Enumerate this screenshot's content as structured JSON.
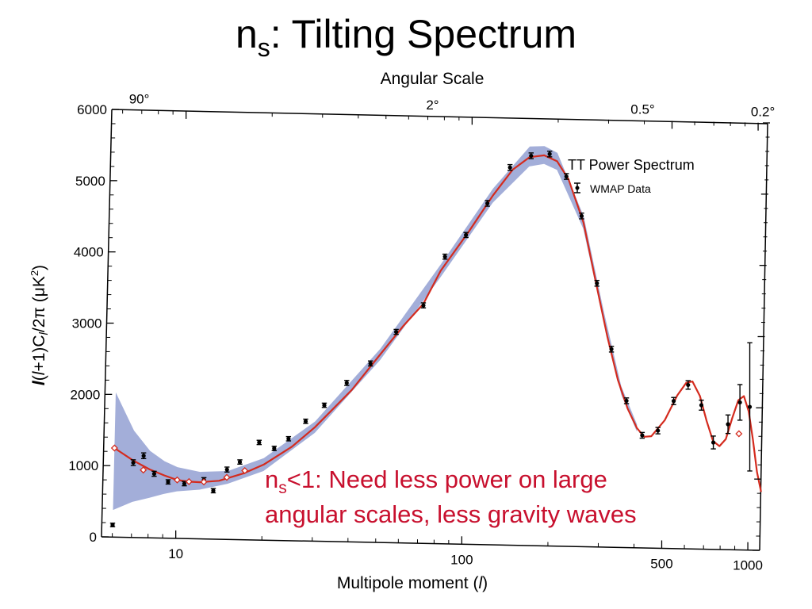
{
  "slide": {
    "title_main": "n",
    "title_sub": "s",
    "title_rest": ": Tilting Spectrum"
  },
  "annotation": {
    "main": "n",
    "sub": "s",
    "line1_rest": "<1: Need less power on large",
    "line2": "angular scales, less gravity waves"
  },
  "chart_data": {
    "type": "scatter",
    "title": "",
    "xlabel": "Multipole moment (l)",
    "ylabel": "l(l+1)C_l/2π (μK²)",
    "ylabel_parts": {
      "l1": "l",
      "mid": "(",
      "l2": "l",
      "mid2": "+1)C",
      "l3": "l",
      "tail": "/2π (μK",
      "sup": "2",
      "close": ")"
    },
    "xlabel_parts": {
      "text": "Multipole moment (",
      "l": "l",
      "close": ")"
    },
    "x_scale": "log",
    "xlim": [
      5.5,
      1100
    ],
    "ylim": [
      0,
      6000
    ],
    "x_ticks": [
      10,
      100,
      500,
      1000
    ],
    "x_tick_labels": [
      "10",
      "100",
      "500",
      "1000"
    ],
    "y_ticks": [
      0,
      1000,
      2000,
      3000,
      4000,
      5000,
      6000
    ],
    "y_tick_labels": [
      "0",
      "1000",
      "2000",
      "3000",
      "4000",
      "5000",
      "6000"
    ],
    "top_axis": {
      "label": "Angular Scale",
      "ticks": [
        {
          "label": "90°",
          "l": 6.6
        },
        {
          "label": "2°",
          "l": 70
        },
        {
          "label": "0.5°",
          "l": 380
        },
        {
          "label": "0.2°",
          "l": 1000
        }
      ]
    },
    "legend": {
      "title": "TT Power Spectrum",
      "entry": "WMAP Data",
      "placement": "top-right"
    },
    "grid": false,
    "colors": {
      "model": "#d42b1e",
      "band": "#a3aed9",
      "data": "#000000",
      "annotation": "#c8102e"
    },
    "series": [
      {
        "name": "WMAP Data",
        "kind": "data",
        "points": [
          {
            "x": 6,
            "y": 170,
            "err": 25
          },
          {
            "x": 7,
            "y": 1050,
            "err": 40
          },
          {
            "x": 7.6,
            "y": 1150,
            "err": 40
          },
          {
            "x": 8.3,
            "y": 900,
            "err": 35
          },
          {
            "x": 9.3,
            "y": 790,
            "err": 30
          },
          {
            "x": 10.6,
            "y": 770,
            "err": 30
          },
          {
            "x": 12.4,
            "y": 830,
            "err": 30
          },
          {
            "x": 13.4,
            "y": 680,
            "err": 30
          },
          {
            "x": 14.9,
            "y": 980,
            "err": 35
          },
          {
            "x": 16.5,
            "y": 1090,
            "err": 30
          },
          {
            "x": 19.2,
            "y": 1370,
            "err": 30
          },
          {
            "x": 21.7,
            "y": 1290,
            "err": 30
          },
          {
            "x": 24.3,
            "y": 1430,
            "err": 30
          },
          {
            "x": 27.8,
            "y": 1680,
            "err": 30
          },
          {
            "x": 32.2,
            "y": 1910,
            "err": 30
          },
          {
            "x": 38.4,
            "y": 2230,
            "err": 35
          },
          {
            "x": 46.3,
            "y": 2510,
            "err": 35
          },
          {
            "x": 56.6,
            "y": 2960,
            "err": 35
          },
          {
            "x": 70.1,
            "y": 3340,
            "err": 35
          },
          {
            "x": 82.6,
            "y": 4030,
            "err": 35
          },
          {
            "x": 97.4,
            "y": 4340,
            "err": 35
          },
          {
            "x": 115,
            "y": 4790,
            "err": 40
          },
          {
            "x": 137,
            "y": 5300,
            "err": 40
          },
          {
            "x": 162,
            "y": 5470,
            "err": 40
          },
          {
            "x": 188,
            "y": 5500,
            "err": 40
          },
          {
            "x": 216,
            "y": 5190,
            "err": 40
          },
          {
            "x": 246,
            "y": 4640,
            "err": 40
          },
          {
            "x": 282,
            "y": 3700,
            "err": 40
          },
          {
            "x": 321,
            "y": 2780,
            "err": 40
          },
          {
            "x": 366,
            "y": 2060,
            "err": 40
          },
          {
            "x": 418,
            "y": 1580,
            "err": 40
          },
          {
            "x": 474,
            "y": 1650,
            "err": 45
          },
          {
            "x": 535,
            "y": 2070,
            "err": 50
          },
          {
            "x": 599,
            "y": 2300,
            "err": 60
          },
          {
            "x": 669,
            "y": 2020,
            "err": 70
          },
          {
            "x": 742,
            "y": 1500,
            "err": 90
          },
          {
            "x": 832,
            "y": 1760,
            "err": 130
          },
          {
            "x": 912,
            "y": 2070,
            "err": 250
          },
          {
            "x": 988,
            "y": 2010,
            "err": 900
          }
        ]
      },
      {
        "name": "",
        "kind": "model",
        "points": [
          {
            "x": 6,
            "y": 1250
          },
          {
            "x": 7,
            "y": 1080
          },
          {
            "x": 8,
            "y": 960
          },
          {
            "x": 9,
            "y": 880
          },
          {
            "x": 10,
            "y": 820
          },
          {
            "x": 11,
            "y": 800
          },
          {
            "x": 12,
            "y": 795
          },
          {
            "x": 14,
            "y": 820
          },
          {
            "x": 17,
            "y": 930
          },
          {
            "x": 20,
            "y": 1060
          },
          {
            "x": 25,
            "y": 1320
          },
          {
            "x": 30,
            "y": 1600
          },
          {
            "x": 40,
            "y": 2130
          },
          {
            "x": 50,
            "y": 2640
          },
          {
            "x": 60,
            "y": 3050
          },
          {
            "x": 70,
            "y": 3360
          },
          {
            "x": 80,
            "y": 3830
          },
          {
            "x": 100,
            "y": 4400
          },
          {
            "x": 120,
            "y": 4900
          },
          {
            "x": 140,
            "y": 5270
          },
          {
            "x": 160,
            "y": 5450
          },
          {
            "x": 180,
            "y": 5480
          },
          {
            "x": 200,
            "y": 5400
          },
          {
            "x": 220,
            "y": 5150
          },
          {
            "x": 250,
            "y": 4550
          },
          {
            "x": 280,
            "y": 3700
          },
          {
            "x": 310,
            "y": 2950
          },
          {
            "x": 340,
            "y": 2350
          },
          {
            "x": 370,
            "y": 1950
          },
          {
            "x": 400,
            "y": 1680
          },
          {
            "x": 425,
            "y": 1560
          },
          {
            "x": 450,
            "y": 1570
          },
          {
            "x": 500,
            "y": 1800
          },
          {
            "x": 550,
            "y": 2150
          },
          {
            "x": 590,
            "y": 2330
          },
          {
            "x": 620,
            "y": 2350
          },
          {
            "x": 660,
            "y": 2150
          },
          {
            "x": 700,
            "y": 1800
          },
          {
            "x": 740,
            "y": 1520
          },
          {
            "x": 780,
            "y": 1450
          },
          {
            "x": 820,
            "y": 1550
          },
          {
            "x": 860,
            "y": 1850
          },
          {
            "x": 900,
            "y": 2100
          },
          {
            "x": 940,
            "y": 2160
          },
          {
            "x": 980,
            "y": 1950
          },
          {
            "x": 1020,
            "y": 1550
          },
          {
            "x": 1060,
            "y": 1100
          },
          {
            "x": 1100,
            "y": 820
          }
        ]
      }
    ],
    "open_markers": [
      {
        "x": 6,
        "y": 1250
      },
      {
        "x": 7.6,
        "y": 950
      },
      {
        "x": 10,
        "y": 820
      },
      {
        "x": 11,
        "y": 800
      },
      {
        "x": 12.4,
        "y": 800
      },
      {
        "x": 14.9,
        "y": 870
      },
      {
        "x": 17.2,
        "y": 970
      },
      {
        "x": 910,
        "y": 1630
      }
    ],
    "band": [
      {
        "x": 6,
        "lo": 380,
        "hi": 2030
      },
      {
        "x": 7,
        "lo": 500,
        "hi": 1500
      },
      {
        "x": 8,
        "lo": 560,
        "hi": 1220
      },
      {
        "x": 9,
        "lo": 620,
        "hi": 1080
      },
      {
        "x": 10,
        "lo": 660,
        "hi": 1000
      },
      {
        "x": 12,
        "lo": 690,
        "hi": 940
      },
      {
        "x": 15,
        "lo": 780,
        "hi": 960
      },
      {
        "x": 20,
        "lo": 970,
        "hi": 1150
      },
      {
        "x": 30,
        "lo": 1520,
        "hi": 1680
      },
      {
        "x": 50,
        "lo": 2560,
        "hi": 2720
      },
      {
        "x": 80,
        "lo": 3740,
        "hi": 3920
      },
      {
        "x": 120,
        "lo": 4800,
        "hi": 5000
      },
      {
        "x": 160,
        "lo": 5320,
        "hi": 5600
      },
      {
        "x": 180,
        "lo": 5360,
        "hi": 5610
      },
      {
        "x": 200,
        "lo": 5280,
        "hi": 5520
      },
      {
        "x": 250,
        "lo": 4460,
        "hi": 4640
      },
      {
        "x": 300,
        "lo": 3160,
        "hi": 3300
      },
      {
        "x": 350,
        "lo": 2150,
        "hi": 2260
      },
      {
        "x": 400,
        "lo": 1630,
        "hi": 1730
      }
    ]
  }
}
